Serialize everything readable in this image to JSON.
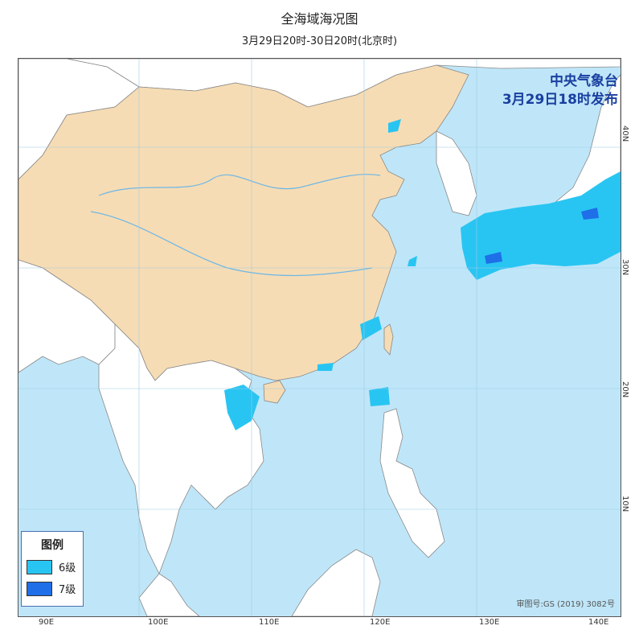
{
  "header": {
    "title": "全海域海况图",
    "subtitle": "3月29日20时-30日20时(北京时)"
  },
  "issuer": {
    "agency": "中央气象台",
    "issued": "3月29日18时发布"
  },
  "approval_number": "审图号:GS (2019) 3082号",
  "axes": {
    "longitude_labels": [
      "90E",
      "100E",
      "110E",
      "120E",
      "130E",
      "140E"
    ],
    "latitude_labels": [
      "40N",
      "30N",
      "20N",
      "10N"
    ]
  },
  "legend": {
    "title": "图例",
    "items": [
      {
        "label": "6级",
        "color": "#29c5f2"
      },
      {
        "label": "7级",
        "color": "#1e6fe8"
      }
    ]
  },
  "colors": {
    "sea": "#bfe6f8",
    "china_land": "#f6dcb4",
    "other_land": "#ffffff",
    "level6": "#29c5f2",
    "level7": "#1e6fe8",
    "rivers": "#6fb7e6",
    "borders": "#888888"
  }
}
